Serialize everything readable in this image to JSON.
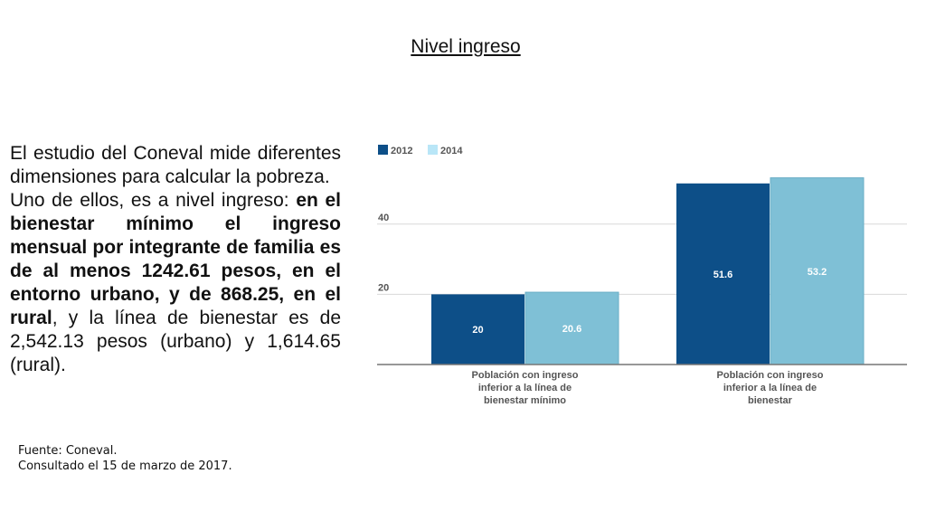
{
  "slide": {
    "title": "Nivel ingreso",
    "paragraph": {
      "intro_1": "El estudio del Coneval mide diferentes dimensiones para calcular la pobreza.",
      "intro_2": "Uno de ellos, es a nivel ingreso: ",
      "bold_1": "en el bienestar mínimo el ingreso mensual por integrante de familia es de al menos 1242.61 pesos, en el entorno urbano, y de 868.25, en el rural",
      "rest": ", y la línea de bienestar es de 2,542.13 pesos (urbano) y 1,614.65 (rural)."
    },
    "source_line_1": "Fuente: Coneval.",
    "source_line_2": "Consultado el 15 de marzo de 2017."
  },
  "colors": {
    "series_2012": "#0d4f88",
    "series_2014": "#7fc0d6",
    "legend_2014": "#b9e6f7",
    "grid": "#d9d9d9",
    "axis": "#777777"
  },
  "chart_data": {
    "type": "bar",
    "title": "",
    "xlabel": "",
    "ylabel": "",
    "ylim": [
      0,
      60
    ],
    "yticks": [
      20,
      40
    ],
    "legend_position": "top-left",
    "categories": [
      "Población con ingreso inferior a la línea de bienestar mínimo",
      "Población con ingreso inferior a la línea de bienestar"
    ],
    "category_lines": [
      [
        "Población con ingreso",
        "inferior a la línea de",
        "bienestar mínimo"
      ],
      [
        "Población con ingreso",
        "inferior a la línea de",
        "bienestar"
      ]
    ],
    "series": [
      {
        "name": "2012",
        "values": [
          20,
          51.6
        ],
        "labels": [
          "20",
          "51.6"
        ]
      },
      {
        "name": "2014",
        "values": [
          20.6,
          53.2
        ],
        "labels": [
          "20.6",
          "53.2"
        ]
      }
    ]
  }
}
